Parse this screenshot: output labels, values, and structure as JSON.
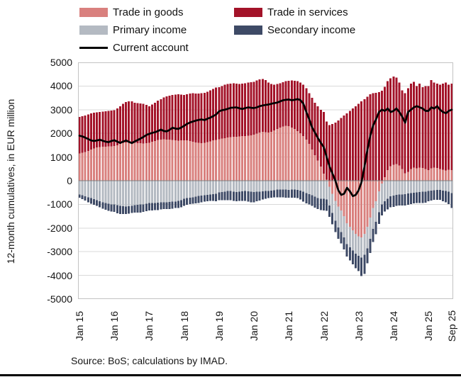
{
  "source": "Source: BoS; calculations by IMAD.",
  "y_axis": {
    "title": "12-month cumulatives, in EUR million",
    "min": -5000,
    "max": 5000,
    "step": 1000,
    "tick_labels": [
      "5000",
      "4000",
      "3000",
      "2000",
      "1000",
      "0",
      "-1000",
      "-2000",
      "-3000",
      "-4000",
      "-5000"
    ]
  },
  "x_axis": {
    "ticks": [
      {
        "label": "Jan 15",
        "month": 0
      },
      {
        "label": "Jan 16",
        "month": 12
      },
      {
        "label": "Jan 17",
        "month": 24
      },
      {
        "label": "Jan 18",
        "month": 36
      },
      {
        "label": "Jan 19",
        "month": 48
      },
      {
        "label": "Jan 20",
        "month": 60
      },
      {
        "label": "Jan 21",
        "month": 72
      },
      {
        "label": "Jan 22",
        "month": 84
      },
      {
        "label": "Jan 23",
        "month": 96
      },
      {
        "label": "Jan 24",
        "month": 108
      },
      {
        "label": "Jan 25",
        "month": 120
      },
      {
        "label": "Sep 25",
        "month": 128
      }
    ]
  },
  "chart_data": {
    "type": "bar",
    "subtype": "stacked-bars-with-line",
    "x_range": "monthly, Jan 2015 - Sep 2025 (129 months)",
    "ylim": [
      -5000,
      5000
    ],
    "grid": true,
    "legend_position": "top",
    "style": {
      "gridline_color": "#d9d9d9",
      "zero_line_color": "#808080",
      "plot_border_color": "#c3c3c3",
      "background": "#ffffff"
    },
    "series": [
      {
        "name": "Trade in goods",
        "color": "#d9807e",
        "kind": "bar-stack",
        "values": [
          1150,
          1180,
          1210,
          1260,
          1310,
          1360,
          1400,
          1420,
          1430,
          1440,
          1450,
          1450,
          1460,
          1500,
          1560,
          1600,
          1620,
          1630,
          1620,
          1600,
          1590,
          1580,
          1570,
          1580,
          1600,
          1640,
          1680,
          1720,
          1740,
          1750,
          1740,
          1730,
          1720,
          1700,
          1690,
          1700,
          1710,
          1700,
          1680,
          1650,
          1620,
          1600,
          1580,
          1600,
          1630,
          1660,
          1700,
          1720,
          1750,
          1780,
          1800,
          1820,
          1840,
          1850,
          1860,
          1870,
          1880,
          1890,
          1900,
          1920,
          1950,
          1990,
          2030,
          2060,
          2050,
          2040,
          2070,
          2120,
          2180,
          2240,
          2290,
          2320,
          2300,
          2250,
          2180,
          2100,
          2000,
          1880,
          1730,
          1550,
          1320,
          1080,
          850,
          600,
          300,
          50,
          -250,
          -550,
          -850,
          -1100,
          -1250,
          -1500,
          -1800,
          -1950,
          -2100,
          -2250,
          -2350,
          -2400,
          -2250,
          -1950,
          -1550,
          -1150,
          -870,
          -450,
          -120,
          150,
          450,
          620,
          680,
          700,
          650,
          500,
          320,
          380,
          500,
          560,
          520,
          560,
          540,
          500,
          450,
          520,
          560,
          540,
          500,
          460,
          430,
          470,
          450
        ]
      },
      {
        "name": "Trade in services",
        "color": "#a31329",
        "kind": "bar-stack",
        "values": [
          1550,
          1550,
          1550,
          1540,
          1530,
          1510,
          1490,
          1480,
          1490,
          1490,
          1500,
          1510,
          1520,
          1550,
          1590,
          1650,
          1700,
          1730,
          1730,
          1700,
          1690,
          1690,
          1680,
          1620,
          1550,
          1580,
          1620,
          1660,
          1710,
          1770,
          1820,
          1870,
          1900,
          1940,
          1960,
          1940,
          1910,
          1950,
          2000,
          2050,
          2070,
          2080,
          2120,
          2120,
          2130,
          2160,
          2180,
          2210,
          2200,
          2220,
          2250,
          2260,
          2260,
          2270,
          2240,
          2210,
          2220,
          2230,
          2240,
          2240,
          2230,
          2240,
          2250,
          2240,
          2200,
          2110,
          2010,
          1930,
          1900,
          1880,
          1870,
          1880,
          1920,
          1980,
          2040,
          2100,
          2150,
          2170,
          2170,
          2150,
          2180,
          2220,
          2300,
          2400,
          2600,
          2450,
          2350,
          2400,
          2450,
          2550,
          2650,
          2750,
          2850,
          2950,
          3050,
          3150,
          3250,
          3350,
          3450,
          3550,
          3650,
          3700,
          3720,
          3750,
          3800,
          3820,
          3750,
          3700,
          3720,
          3650,
          3500,
          3320,
          3380,
          3520,
          3600,
          3620,
          3480,
          3540,
          3410,
          3500,
          3550,
          3730,
          3590,
          3560,
          3550,
          3640,
          3720,
          3580,
          3650
        ]
      },
      {
        "name": "Primary income",
        "color": "#b4bac2",
        "kind": "bar-stack",
        "values": [
          -580,
          -620,
          -660,
          -700,
          -740,
          -780,
          -820,
          -870,
          -910,
          -950,
          -980,
          -1000,
          -1010,
          -1040,
          -1060,
          -1080,
          -1090,
          -1080,
          -1060,
          -1040,
          -1020,
          -1010,
          -1000,
          -980,
          -950,
          -950,
          -940,
          -930,
          -920,
          -915,
          -910,
          -900,
          -890,
          -880,
          -860,
          -820,
          -770,
          -740,
          -720,
          -700,
          -680,
          -650,
          -625,
          -610,
          -600,
          -580,
          -570,
          -550,
          -500,
          -480,
          -460,
          -440,
          -435,
          -460,
          -480,
          -470,
          -450,
          -440,
          -450,
          -470,
          -480,
          -470,
          -460,
          -450,
          -440,
          -430,
          -420,
          -400,
          -380,
          -370,
          -375,
          -380,
          -385,
          -380,
          -380,
          -385,
          -420,
          -470,
          -530,
          -570,
          -620,
          -680,
          -730,
          -760,
          -770,
          -790,
          -800,
          -810,
          -840,
          -880,
          -915,
          -900,
          -880,
          -865,
          -845,
          -830,
          -820,
          -850,
          -880,
          -910,
          -900,
          -880,
          -865,
          -880,
          -880,
          -865,
          -760,
          -660,
          -625,
          -600,
          -590,
          -580,
          -570,
          -545,
          -530,
          -510,
          -495,
          -480,
          -470,
          -460,
          -435,
          -420,
          -400,
          -385,
          -395,
          -420,
          -435,
          -470,
          -520
        ]
      },
      {
        "name": "Secondary income",
        "color": "#3e4a66",
        "kind": "bar-stack",
        "values": [
          -140,
          -160,
          -180,
          -210,
          -230,
          -240,
          -250,
          -260,
          -270,
          -280,
          -290,
          -300,
          -310,
          -330,
          -340,
          -330,
          -320,
          -310,
          -300,
          -310,
          -320,
          -330,
          -320,
          -310,
          -300,
          -300,
          -300,
          -310,
          -300,
          -290,
          -290,
          -300,
          -290,
          -280,
          -290,
          -300,
          -290,
          -280,
          -270,
          -270,
          -280,
          -290,
          -290,
          -280,
          -270,
          -280,
          -290,
          -320,
          -330,
          -350,
          -370,
          -380,
          -385,
          -390,
          -385,
          -390,
          -400,
          -420,
          -440,
          -450,
          -430,
          -400,
          -380,
          -350,
          -330,
          -300,
          -300,
          -310,
          -320,
          -330,
          -335,
          -340,
          -335,
          -340,
          -345,
          -350,
          -380,
          -420,
          -430,
          -440,
          -450,
          -460,
          -470,
          -480,
          -480,
          -480,
          -480,
          -480,
          -480,
          -480,
          -480,
          -500,
          -530,
          -560,
          -590,
          -620,
          -650,
          -780,
          -800,
          -630,
          -600,
          -560,
          -530,
          -490,
          -460,
          -435,
          -450,
          -460,
          -480,
          -470,
          -465,
          -470,
          -480,
          -470,
          -455,
          -450,
          -450,
          -470,
          -480,
          -475,
          -430,
          -420,
          -415,
          -430,
          -420,
          -445,
          -480,
          -520,
          -630
        ]
      },
      {
        "name": "Current account",
        "color": "#000000",
        "kind": "line",
        "values": [
          1900,
          1870,
          1820,
          1760,
          1700,
          1680,
          1700,
          1730,
          1690,
          1650,
          1630,
          1680,
          1710,
          1650,
          1600,
          1650,
          1700,
          1640,
          1590,
          1660,
          1720,
          1780,
          1850,
          1930,
          1980,
          2020,
          2050,
          2100,
          2160,
          2100,
          2085,
          2150,
          2240,
          2200,
          2190,
          2250,
          2320,
          2400,
          2460,
          2500,
          2540,
          2570,
          2590,
          2560,
          2620,
          2665,
          2730,
          2800,
          2930,
          2980,
          3000,
          3040,
          3080,
          3090,
          3100,
          3060,
          3030,
          3070,
          3100,
          3080,
          3070,
          3100,
          3150,
          3180,
          3200,
          3220,
          3250,
          3280,
          3300,
          3350,
          3400,
          3420,
          3430,
          3400,
          3420,
          3450,
          3400,
          3250,
          2900,
          2600,
          2250,
          2030,
          1800,
          1600,
          1420,
          1000,
          600,
          300,
          0,
          -400,
          -600,
          -550,
          -300,
          -450,
          -650,
          -600,
          -400,
          -50,
          600,
          1300,
          1900,
          2340,
          2600,
          2900,
          3000,
          2950,
          3050,
          2900,
          2950,
          3050,
          2900,
          2700,
          2450,
          2900,
          3000,
          3100,
          3150,
          3100,
          3050,
          2950,
          2950,
          3100,
          3050,
          3150,
          3000,
          2900,
          2850,
          2950,
          3000
        ]
      }
    ]
  }
}
